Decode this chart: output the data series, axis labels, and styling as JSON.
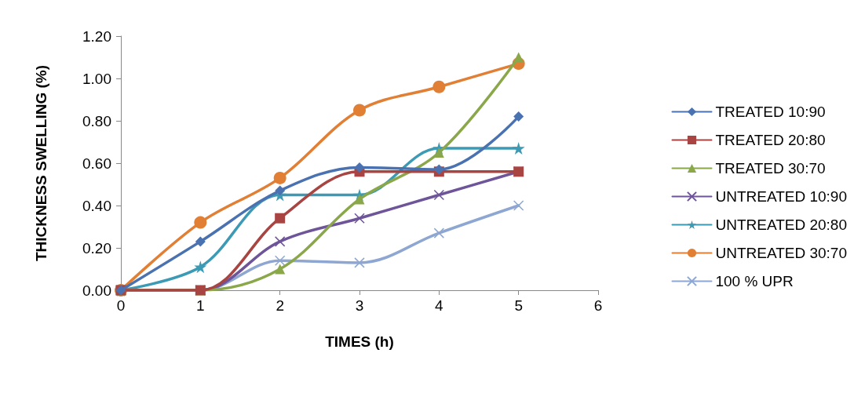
{
  "chart_data": {
    "type": "line",
    "xlabel": "TIMES (h)",
    "ylabel": "THICKNESS SWELLING (%)",
    "x": [
      0,
      1,
      2,
      3,
      4,
      5
    ],
    "xlim": [
      0,
      6
    ],
    "xticks": [
      0,
      1,
      2,
      3,
      4,
      5,
      6
    ],
    "ylim": [
      0,
      1.2
    ],
    "yticks": [
      {
        "value": 0,
        "label": "0.00"
      },
      {
        "value": 0.2,
        "label": "0.20"
      },
      {
        "value": 0.4,
        "label": "0.40"
      },
      {
        "value": 0.6,
        "label": "0.60"
      },
      {
        "value": 0.8,
        "label": "0.80"
      },
      {
        "value": 1,
        "label": "1.00"
      },
      {
        "value": 1.2,
        "label": "1.20"
      }
    ],
    "grid": false,
    "legend": "right",
    "line_style": "solid",
    "series": [
      {
        "name": "TREATED 10:90",
        "color": "#4a72b0",
        "marker": "diamond",
        "values": [
          0,
          0.23,
          0.47,
          0.58,
          0.57,
          0.82
        ]
      },
      {
        "name": "TREATED 20:80",
        "color": "#a84442",
        "marker": "square",
        "values": [
          0,
          0,
          0.34,
          0.56,
          0.56,
          0.56
        ]
      },
      {
        "name": "TREATED 30:70",
        "color": "#8aa84a",
        "marker": "triangle",
        "values": [
          0,
          0,
          0.1,
          0.43,
          0.65,
          1.1
        ]
      },
      {
        "name": "UNTREATED 10:90",
        "color": "#6e5498",
        "marker": "cross",
        "values": [
          0,
          0,
          0.23,
          0.34,
          0.45,
          0.56
        ]
      },
      {
        "name": "UNTREATED 20:80",
        "color": "#3d9ab4",
        "marker": "star",
        "values": [
          0,
          0.11,
          0.45,
          0.45,
          0.67,
          0.67
        ]
      },
      {
        "name": "UNTREATED 30:70",
        "color": "#e17f35",
        "marker": "circle",
        "values": [
          0,
          0.32,
          0.53,
          0.85,
          0.96,
          1.07
        ]
      },
      {
        "name": "100 % UPR",
        "color": "#8ea7d2",
        "marker": "cross",
        "values": [
          0,
          0,
          0.14,
          0.13,
          0.27,
          0.4
        ]
      }
    ]
  }
}
